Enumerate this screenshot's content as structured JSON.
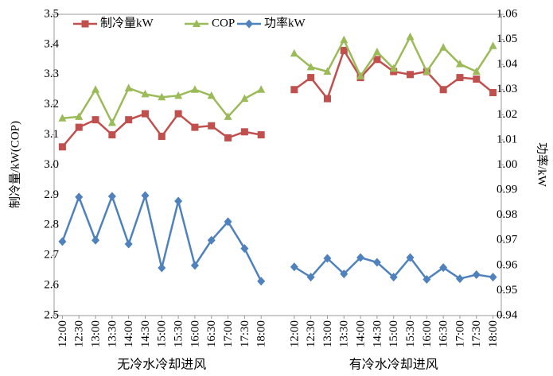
{
  "chart_data": {
    "type": "line",
    "ylabel": "制冷量/kW(COP)",
    "y2label": "功率/kW",
    "categories": [
      "12:00",
      "12:30",
      "13:00",
      "13:30",
      "14:00",
      "14:30",
      "15:00",
      "15:30",
      "16:00",
      "16:30",
      "17:00",
      "17:30",
      "18:00",
      null,
      "12:00",
      "12:30",
      "13:00",
      "13:30",
      "14:00",
      "14:30",
      "15:00",
      "15:30",
      "16:00",
      "16:30",
      "17:00",
      "17:30",
      "18:00"
    ],
    "groups": [
      "无冷水冷却进风",
      "有冷水冷却进风"
    ],
    "ylim": [
      2.5,
      3.5
    ],
    "yticks": [
      2.5,
      2.6,
      2.7,
      2.8,
      2.9,
      {
        "value": 3,
        "label": "3.0"
      },
      3.1,
      3.2,
      3.3,
      3.4,
      3.5
    ],
    "y2lim": [
      0.94,
      1.06
    ],
    "y2ticks": [
      0.94,
      0.95,
      0.96,
      0.97,
      0.98,
      0.99,
      {
        "value": 1,
        "label": "1.00"
      },
      1.01,
      1.02,
      1.03,
      1.04,
      1.05,
      1.06
    ],
    "legend": "top-left",
    "series": [
      {
        "name": "制冷量kW",
        "color": "#c0504d",
        "marker": "square",
        "values": [
          3.06,
          3.125,
          3.15,
          3.1,
          3.15,
          3.17,
          3.095,
          3.17,
          3.125,
          3.13,
          3.09,
          3.11,
          3.1,
          null,
          3.25,
          3.29,
          3.22,
          3.38,
          3.29,
          3.35,
          3.31,
          3.3,
          3.31,
          3.25,
          3.29,
          3.285,
          3.24
        ]
      },
      {
        "name": "COP",
        "color": "#9bbb59",
        "marker": "triangle",
        "values": [
          3.155,
          3.16,
          3.25,
          3.14,
          3.255,
          3.235,
          3.225,
          3.23,
          3.25,
          3.23,
          3.16,
          3.22,
          3.25,
          null,
          3.37,
          3.325,
          3.31,
          3.415,
          3.295,
          3.375,
          3.32,
          3.425,
          3.31,
          3.39,
          3.335,
          3.31,
          3.395
        ]
      },
      {
        "name": "功率kW",
        "color": "#4f81bd",
        "marker": "diamond",
        "axis": "y2",
        "values": [
          0.9695,
          0.9872,
          0.97,
          0.9875,
          0.9685,
          0.9878,
          0.959,
          0.9856,
          0.96,
          0.97,
          0.9774,
          0.9667,
          0.9537,
          null,
          0.9594,
          0.9553,
          0.9628,
          0.9566,
          0.9631,
          0.9612,
          0.9553,
          0.9631,
          0.9544,
          0.9591,
          0.9547,
          0.9563,
          0.9553
        ]
      }
    ]
  }
}
